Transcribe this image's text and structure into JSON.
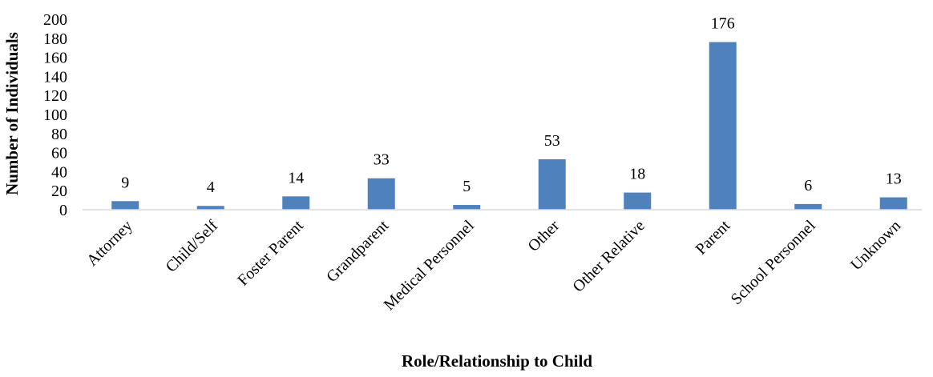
{
  "chart_data": {
    "type": "bar",
    "title": "",
    "xlabel": "Role/Relationship to Child",
    "ylabel": "Number of Individuals",
    "categories": [
      "Attorney",
      "Child/Self",
      "Foster Parent",
      "Grandparent",
      "Medical Personnel",
      "Other",
      "Other Relative",
      "Parent",
      "School Personnel",
      "Unknown"
    ],
    "values": [
      9,
      4,
      14,
      33,
      5,
      53,
      18,
      176,
      6,
      13
    ],
    "data_labels": [
      "9",
      "4",
      "14",
      "33",
      "5",
      "53",
      "18",
      "176",
      "6",
      "13"
    ],
    "ylim": [
      0,
      200
    ],
    "yticks": [
      "0",
      "20",
      "40",
      "60",
      "80",
      "100",
      "120",
      "140",
      "160",
      "180",
      "200"
    ],
    "grid": false,
    "legend": "none",
    "bar_color": "#4f81bd",
    "baseline_color": "#d9d9d9"
  }
}
